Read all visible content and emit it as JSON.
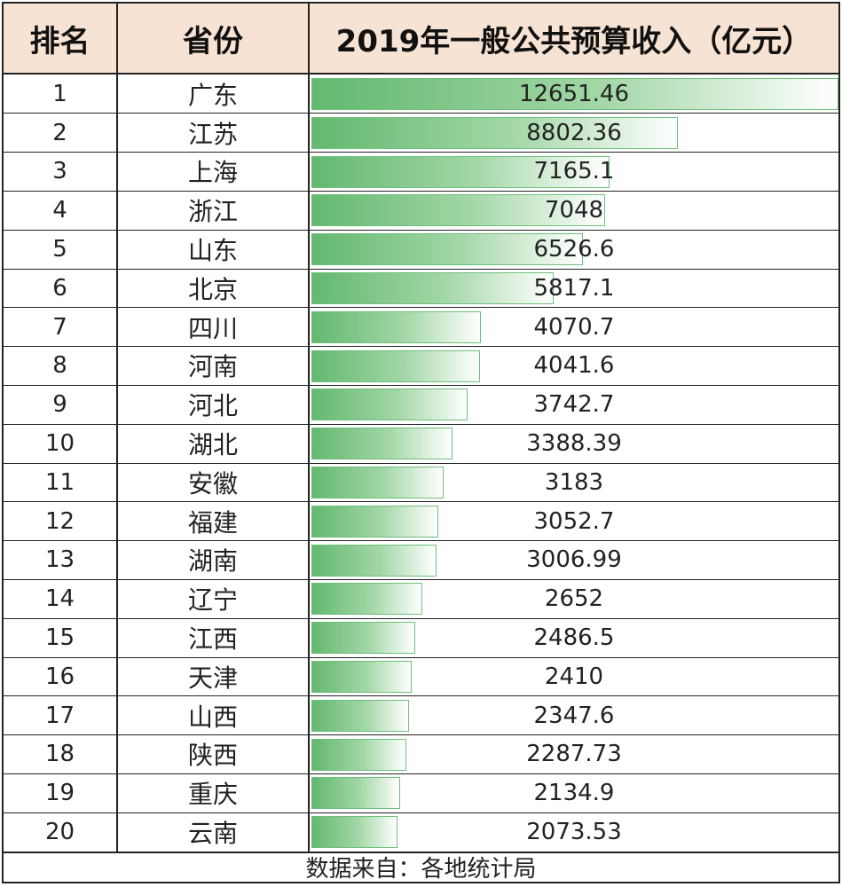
{
  "table": {
    "headers": {
      "rank": "排名",
      "province": "省份",
      "revenue": "2019年一般公共预算收入（亿元）"
    },
    "footer": "数据来自：各地统计局"
  },
  "chart_data": {
    "type": "bar",
    "title": "",
    "xlabel": "",
    "ylabel": "2019年一般公共预算收入（亿元）",
    "ranks": [
      "1",
      "2",
      "3",
      "4",
      "5",
      "6",
      "7",
      "8",
      "9",
      "10",
      "11",
      "12",
      "13",
      "14",
      "15",
      "16",
      "17",
      "18",
      "19",
      "20"
    ],
    "categories": [
      "广东",
      "江苏",
      "上海",
      "浙江",
      "山东",
      "北京",
      "四川",
      "河南",
      "河北",
      "湖北",
      "安徽",
      "福建",
      "湖南",
      "辽宁",
      "江西",
      "天津",
      "山西",
      "陕西",
      "重庆",
      "云南"
    ],
    "values": [
      12651.46,
      8802.36,
      7165.1,
      7048,
      6526.6,
      5817.1,
      4070.7,
      4041.6,
      3742.7,
      3388.39,
      3183,
      3052.7,
      3006.99,
      2652,
      2486.5,
      2410,
      2347.6,
      2287.73,
      2134.9,
      2073.53
    ],
    "value_labels": [
      "12651.46",
      "8802.36",
      "7165.1",
      "7048",
      "6526.6",
      "5817.1",
      "4070.7",
      "4041.6",
      "3742.7",
      "3388.39",
      "3183",
      "3052.7",
      "3006.99",
      "2652",
      "2486.5",
      "2410",
      "2347.6",
      "2287.73",
      "2134.9",
      "2073.53"
    ],
    "ylim": [
      0,
      12651.46
    ],
    "colors": {
      "bar_start": "#63b86f",
      "bar_mid": "#a3d7a7",
      "bar_end": "#ffffff",
      "bar_border": "#6fc07a",
      "header_bg": "#f7e3d3"
    }
  }
}
